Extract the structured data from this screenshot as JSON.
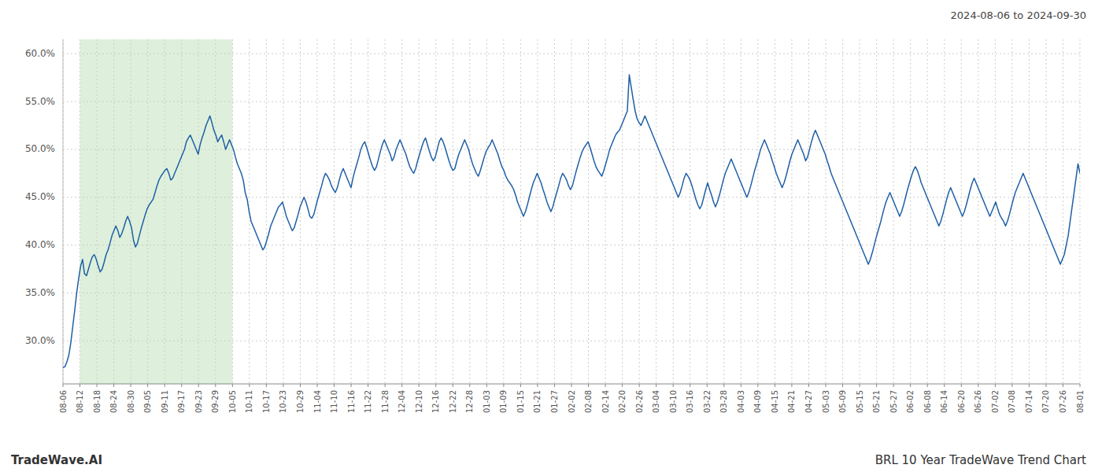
{
  "chart_data": {
    "type": "line",
    "title": "2024-08-06 to 2024-09-30",
    "annotations": [
      "TradeWave.AI",
      "BRL 10 Year TradeWave Trend Chart"
    ],
    "color": "#1f5fa6",
    "grid": true,
    "highlight": {
      "start": 8.65,
      "end": 86.5,
      "color": "#d6ecd2"
    },
    "xlim": [
      0,
      519
    ],
    "xticks": [
      {
        "value": 0,
        "label": "08-06"
      },
      {
        "value": 8.65,
        "label": "08-12"
      },
      {
        "value": 17.3,
        "label": "08-18"
      },
      {
        "value": 25.95,
        "label": "08-24"
      },
      {
        "value": 34.6,
        "label": "08-30"
      },
      {
        "value": 43.25,
        "label": "09-05"
      },
      {
        "value": 51.9,
        "label": "09-11"
      },
      {
        "value": 60.55,
        "label": "09-17"
      },
      {
        "value": 69.2,
        "label": "09-23"
      },
      {
        "value": 77.85,
        "label": "09-29"
      },
      {
        "value": 86.5,
        "label": "10-05"
      },
      {
        "value": 95.15,
        "label": "10-11"
      },
      {
        "value": 103.8,
        "label": "10-17"
      },
      {
        "value": 112.45,
        "label": "10-23"
      },
      {
        "value": 121.1,
        "label": "10-29"
      },
      {
        "value": 129.75,
        "label": "11-04"
      },
      {
        "value": 138.4,
        "label": "11-10"
      },
      {
        "value": 147.05,
        "label": "11-16"
      },
      {
        "value": 155.7,
        "label": "11-22"
      },
      {
        "value": 164.35,
        "label": "11-28"
      },
      {
        "value": 173,
        "label": "12-04"
      },
      {
        "value": 181.65,
        "label": "12-10"
      },
      {
        "value": 190.3,
        "label": "12-16"
      },
      {
        "value": 198.95,
        "label": "12-22"
      },
      {
        "value": 207.6,
        "label": "12-28"
      },
      {
        "value": 216.25,
        "label": "01-03"
      },
      {
        "value": 224.9,
        "label": "01-09"
      },
      {
        "value": 233.55,
        "label": "01-15"
      },
      {
        "value": 242.2,
        "label": "01-21"
      },
      {
        "value": 250.85,
        "label": "01-27"
      },
      {
        "value": 259.5,
        "label": "02-02"
      },
      {
        "value": 268.15,
        "label": "02-08"
      },
      {
        "value": 276.8,
        "label": "02-14"
      },
      {
        "value": 285.45,
        "label": "02-20"
      },
      {
        "value": 294.1,
        "label": "02-26"
      },
      {
        "value": 302.75,
        "label": "03-04"
      },
      {
        "value": 311.4,
        "label": "03-10"
      },
      {
        "value": 320.05,
        "label": "03-16"
      },
      {
        "value": 328.7,
        "label": "03-22"
      },
      {
        "value": 337.35,
        "label": "03-28"
      },
      {
        "value": 346,
        "label": "04-03"
      },
      {
        "value": 354.65,
        "label": "04-09"
      },
      {
        "value": 363.3,
        "label": "04-15"
      },
      {
        "value": 371.95,
        "label": "04-21"
      },
      {
        "value": 380.6,
        "label": "04-27"
      },
      {
        "value": 389.25,
        "label": "05-03"
      },
      {
        "value": 397.9,
        "label": "05-09"
      },
      {
        "value": 406.55,
        "label": "05-15"
      },
      {
        "value": 415.2,
        "label": "05-21"
      },
      {
        "value": 423.85,
        "label": "05-27"
      },
      {
        "value": 432.5,
        "label": "06-02"
      },
      {
        "value": 441.15,
        "label": "06-08"
      },
      {
        "value": 449.8,
        "label": "06-14"
      },
      {
        "value": 458.45,
        "label": "06-20"
      },
      {
        "value": 467.1,
        "label": "06-26"
      },
      {
        "value": 475.75,
        "label": "07-02"
      },
      {
        "value": 484.4,
        "label": "07-08"
      },
      {
        "value": 493.05,
        "label": "07-14"
      },
      {
        "value": 501.7,
        "label": "07-20"
      },
      {
        "value": 510.35,
        "label": "07-26"
      },
      {
        "value": 519,
        "label": "08-01"
      }
    ],
    "ylim": [
      25.5,
      61.5
    ],
    "yticks": [
      {
        "value": 30.0,
        "label": "30.0%"
      },
      {
        "value": 35.0,
        "label": "35.0%"
      },
      {
        "value": 40.0,
        "label": "40.0%"
      },
      {
        "value": 45.0,
        "label": "45.0%"
      },
      {
        "value": 50.0,
        "label": "50.0%"
      },
      {
        "value": 55.0,
        "label": "55.0%"
      },
      {
        "value": 60.0,
        "label": "60.0%"
      }
    ],
    "values": [
      27.2,
      27.3,
      27.8,
      28.5,
      29.8,
      31.5,
      33.2,
      35.0,
      36.5,
      37.8,
      38.5,
      37.0,
      36.8,
      37.5,
      38.2,
      38.8,
      39.0,
      38.5,
      37.8,
      37.2,
      37.5,
      38.2,
      39.0,
      39.5,
      40.2,
      41.0,
      41.5,
      42.0,
      41.5,
      40.8,
      41.2,
      41.8,
      42.5,
      43.0,
      42.5,
      41.8,
      40.5,
      39.8,
      40.2,
      41.0,
      41.8,
      42.5,
      43.2,
      43.8,
      44.2,
      44.5,
      44.8,
      45.5,
      46.2,
      46.8,
      47.2,
      47.5,
      47.8,
      48.0,
      47.5,
      46.8,
      47.0,
      47.5,
      48.0,
      48.5,
      49.0,
      49.5,
      50.0,
      50.8,
      51.2,
      51.5,
      51.0,
      50.5,
      50.0,
      49.5,
      50.5,
      51.2,
      51.8,
      52.5,
      53.0,
      53.5,
      52.8,
      52.0,
      51.5,
      50.8,
      51.2,
      51.5,
      50.8,
      50.0,
      50.5,
      51.0,
      50.5,
      50.0,
      49.2,
      48.5,
      48.0,
      47.5,
      46.8,
      45.5,
      44.8,
      43.5,
      42.5,
      42.0,
      41.5,
      41.0,
      40.5,
      40.0,
      39.5,
      39.8,
      40.5,
      41.2,
      42.0,
      42.5,
      43.0,
      43.5,
      44.0,
      44.2,
      44.5,
      43.8,
      43.0,
      42.5,
      42.0,
      41.5,
      41.8,
      42.5,
      43.2,
      44.0,
      44.5,
      45.0,
      44.5,
      43.8,
      43.0,
      42.8,
      43.2,
      44.0,
      44.8,
      45.5,
      46.2,
      47.0,
      47.5,
      47.2,
      46.8,
      46.2,
      45.8,
      45.5,
      46.0,
      46.8,
      47.5,
      48.0,
      47.5,
      47.0,
      46.5,
      46.0,
      47.0,
      47.8,
      48.5,
      49.2,
      50.0,
      50.5,
      50.8,
      50.2,
      49.5,
      48.8,
      48.2,
      47.8,
      48.2,
      49.0,
      49.8,
      50.5,
      51.0,
      50.5,
      50.0,
      49.5,
      48.8,
      49.2,
      50.0,
      50.5,
      51.0,
      50.5,
      50.0,
      49.5,
      48.8,
      48.2,
      47.8,
      47.5,
      48.0,
      48.8,
      49.5,
      50.2,
      50.8,
      51.2,
      50.5,
      49.8,
      49.2,
      48.8,
      49.2,
      50.0,
      50.8,
      51.2,
      50.8,
      50.2,
      49.5,
      48.8,
      48.2,
      47.8,
      48.0,
      48.8,
      49.5,
      50.0,
      50.5,
      51.0,
      50.5,
      50.0,
      49.2,
      48.5,
      48.0,
      47.5,
      47.2,
      47.8,
      48.5,
      49.2,
      49.8,
      50.2,
      50.5,
      51.0,
      50.5,
      50.0,
      49.5,
      48.8,
      48.2,
      47.8,
      47.2,
      46.8,
      46.5,
      46.2,
      45.8,
      45.2,
      44.5,
      44.0,
      43.5,
      43.0,
      43.5,
      44.2,
      45.0,
      45.8,
      46.5,
      47.0,
      47.5,
      47.0,
      46.5,
      45.8,
      45.2,
      44.5,
      44.0,
      43.5,
      44.0,
      44.8,
      45.5,
      46.2,
      47.0,
      47.5,
      47.2,
      46.8,
      46.2,
      45.8,
      46.2,
      47.0,
      47.8,
      48.5,
      49.2,
      49.8,
      50.2,
      50.5,
      50.8,
      50.2,
      49.5,
      48.8,
      48.2,
      47.8,
      47.5,
      47.2,
      47.8,
      48.5,
      49.2,
      50.0,
      50.5,
      51.0,
      51.5,
      51.8,
      52.0,
      52.5,
      53.0,
      53.5,
      54.0,
      57.8,
      56.5,
      55.2,
      54.0,
      53.2,
      52.8,
      52.5,
      53.0,
      53.5,
      53.0,
      52.5,
      52.0,
      51.5,
      51.0,
      50.5,
      50.0,
      49.5,
      49.0,
      48.5,
      48.0,
      47.5,
      47.0,
      46.5,
      46.0,
      45.5,
      45.0,
      45.5,
      46.2,
      47.0,
      47.5,
      47.2,
      46.8,
      46.2,
      45.5,
      44.8,
      44.2,
      43.8,
      44.2,
      45.0,
      45.8,
      46.5,
      45.8,
      45.2,
      44.5,
      44.0,
      44.5,
      45.2,
      46.0,
      46.8,
      47.5,
      48.0,
      48.5,
      49.0,
      48.5,
      48.0,
      47.5,
      47.0,
      46.5,
      46.0,
      45.5,
      45.0,
      45.5,
      46.2,
      47.0,
      47.8,
      48.5,
      49.2,
      50.0,
      50.5,
      51.0,
      50.5,
      50.0,
      49.5,
      48.8,
      48.2,
      47.5,
      47.0,
      46.5,
      46.0,
      46.5,
      47.2,
      48.0,
      48.8,
      49.5,
      50.0,
      50.5,
      51.0,
      50.5,
      50.0,
      49.5,
      48.8,
      49.2,
      50.0,
      50.8,
      51.5,
      52.0,
      51.5,
      51.0,
      50.5,
      50.0,
      49.5,
      48.8,
      48.2,
      47.5,
      47.0,
      46.5,
      46.0,
      45.5,
      45.0,
      44.5,
      44.0,
      43.5,
      43.0,
      42.5,
      42.0,
      41.5,
      41.0,
      40.5,
      40.0,
      39.5,
      39.0,
      38.5,
      38.0,
      38.5,
      39.2,
      40.0,
      40.8,
      41.5,
      42.2,
      43.0,
      43.8,
      44.5,
      45.0,
      45.5,
      45.0,
      44.5,
      44.0,
      43.5,
      43.0,
      43.5,
      44.2,
      45.0,
      45.8,
      46.5,
      47.2,
      47.8,
      48.2,
      47.8,
      47.2,
      46.5,
      46.0,
      45.5,
      45.0,
      44.5,
      44.0,
      43.5,
      43.0,
      42.5,
      42.0,
      42.5,
      43.2,
      44.0,
      44.8,
      45.5,
      46.0,
      45.5,
      45.0,
      44.5,
      44.0,
      43.5,
      43.0,
      43.5,
      44.2,
      45.0,
      45.8,
      46.5,
      47.0,
      46.5,
      46.0,
      45.5,
      45.0,
      44.5,
      44.0,
      43.5,
      43.0,
      43.5,
      44.0,
      44.5,
      43.8,
      43.2,
      42.8,
      42.5,
      42.0,
      42.5,
      43.2,
      44.0,
      44.8,
      45.5,
      46.0,
      46.5,
      47.0,
      47.5,
      47.0,
      46.5,
      46.0,
      45.5,
      45.0,
      44.5,
      44.0,
      43.5,
      43.0,
      42.5,
      42.0,
      41.5,
      41.0,
      40.5,
      40.0,
      39.5,
      39.0,
      38.5,
      38.0,
      38.5,
      39.0,
      40.0,
      41.0,
      42.5,
      44.0,
      45.5,
      47.0,
      48.5,
      47.5
    ]
  }
}
